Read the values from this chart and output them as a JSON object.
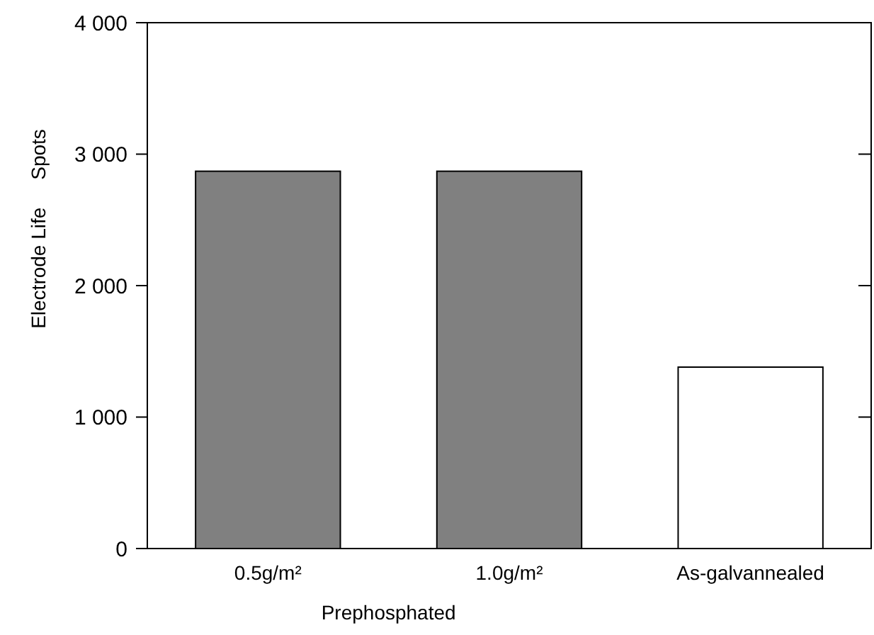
{
  "chart_data": {
    "type": "bar",
    "categories": [
      "0.5g/m²",
      "1.0g/m²",
      "As-galvannealed"
    ],
    "values": [
      2870,
      2870,
      1380
    ],
    "colors": [
      "#808080",
      "#808080",
      "#ffffff"
    ],
    "xlabel": "Prephosphated",
    "ylabel": "Electrode Life     Spots",
    "ylim": [
      0,
      4000
    ],
    "yticks": [
      0,
      {
        "value": 1000,
        "label": "1 000"
      },
      {
        "value": 2000,
        "label": "2 000"
      },
      {
        "value": 3000,
        "label": "3 000"
      },
      {
        "value": 4000,
        "label": "4 000"
      }
    ],
    "grid": false
  }
}
